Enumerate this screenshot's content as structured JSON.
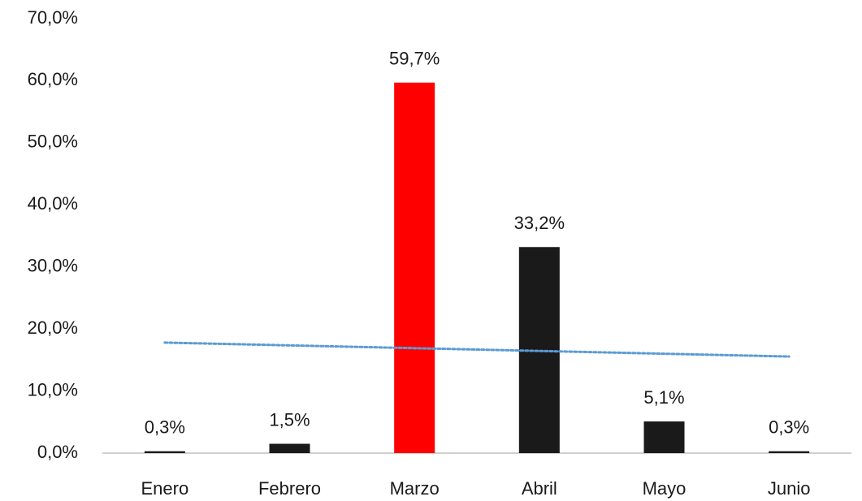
{
  "chart_data": {
    "type": "bar",
    "categories": [
      "Enero",
      "Febrero",
      "Marzo",
      "Abril",
      "Mayo",
      "Junio"
    ],
    "values": [
      0.3,
      1.5,
      59.7,
      33.2,
      5.1,
      0.3
    ],
    "value_labels": [
      "0,3%",
      "1,5%",
      "59,7%",
      "33,2%",
      "5,1%",
      "0,3%"
    ],
    "colors": [
      "#1a1a1a",
      "#1a1a1a",
      "#ff0000",
      "#1a1a1a",
      "#1a1a1a",
      "#1a1a1a"
    ],
    "ylim": [
      0,
      70
    ],
    "yticks": [
      {
        "value": 0,
        "label": "0,0%"
      },
      {
        "value": 10,
        "label": "10,0%"
      },
      {
        "value": 20,
        "label": "20,0%"
      },
      {
        "value": 30,
        "label": "30,0%"
      },
      {
        "value": 40,
        "label": "40,0%"
      },
      {
        "value": 50,
        "label": "50,0%"
      },
      {
        "value": 60,
        "label": "60,0%"
      },
      {
        "value": 70,
        "label": "70,0%"
      }
    ],
    "grid": false,
    "trendline": "linear",
    "trendline_color": "#5b9bd5"
  }
}
